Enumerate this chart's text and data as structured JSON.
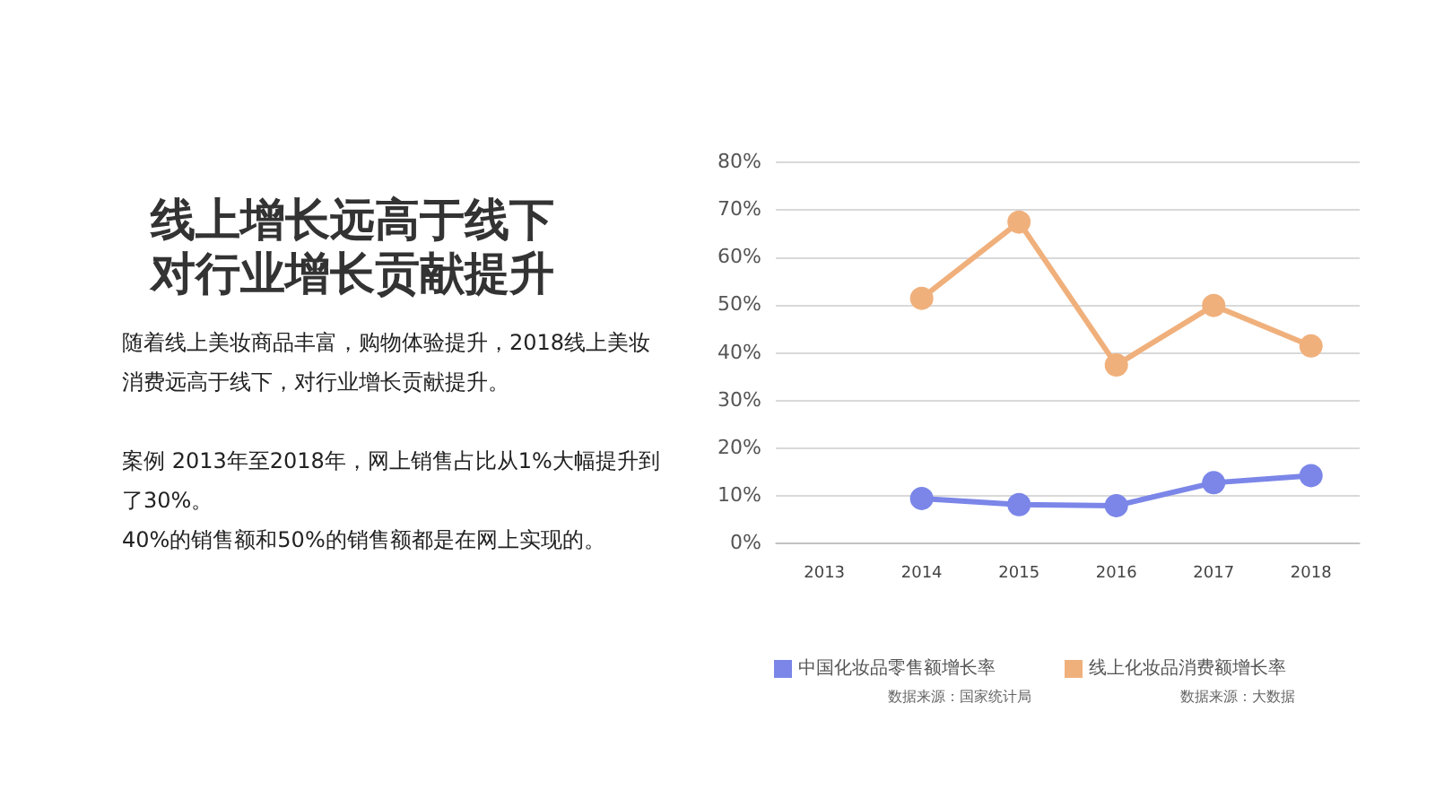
{
  "chart_data": {
    "type": "line",
    "title": "线上增长远高于线下对行业增长贡献提升",
    "annotations": [
      "随着线上美妆商品丰富，购物体验提升，2018线上美妆消费远高于线下，对行业增长贡献提升。",
      "案例 2013年至2018年，网上销售占比从1%大幅提升到了30%。",
      "40%的销售额和50%的销售额都是在网上实现的。",
      "数据来源：国家统计局",
      "数据来源：大数据"
    ],
    "categories": [
      "2013",
      "2014",
      "2015",
      "2016",
      "2017",
      "2018"
    ],
    "series": [
      {
        "name": "中国化妆品零售额增长率",
        "color": "#7b86e8",
        "values": [
          null,
          9.5,
          8.2,
          8.0,
          12.8,
          14.3
        ]
      },
      {
        "name": "线上化妆品消费额增长率",
        "color": "#f0b07c",
        "values": [
          null,
          51.5,
          67.5,
          37.5,
          50.0,
          41.5
        ]
      }
    ],
    "ylim": [
      0,
      80
    ],
    "yticks": [
      {
        "value": 0,
        "label": "0%"
      },
      {
        "value": 10,
        "label": "10%"
      },
      {
        "value": 20,
        "label": "20%"
      },
      {
        "value": 30,
        "label": "30%"
      },
      {
        "value": 40,
        "label": "40%"
      },
      {
        "value": 50,
        "label": "50%"
      },
      {
        "value": 60,
        "label": "60%"
      },
      {
        "value": 70,
        "label": "70%"
      },
      {
        "value": 80,
        "label": "80%"
      }
    ],
    "grid": "y",
    "legend": "bottom",
    "marker": "circle",
    "line_style": "solid"
  }
}
